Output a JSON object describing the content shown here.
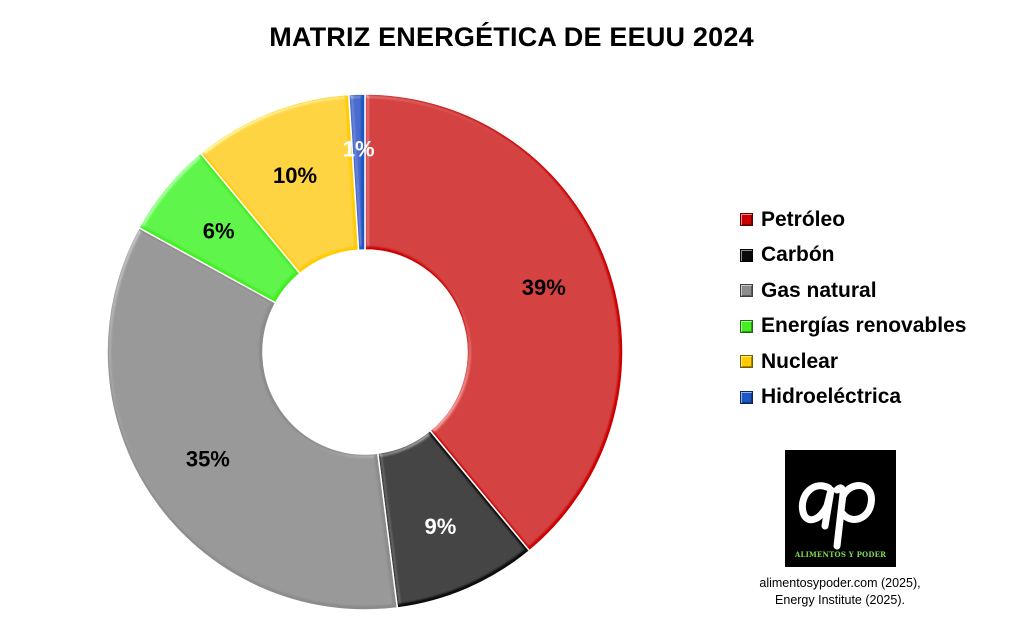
{
  "chart_data": {
    "type": "pie",
    "title": "MATRIZ ENERGÉTICA DE EEUU 2024",
    "donut": true,
    "legend_position": "right",
    "slices": [
      {
        "name": "Petróleo",
        "value": 39,
        "label": "39%",
        "color": "#cc0000",
        "label_color": "#000000"
      },
      {
        "name": "Carbón",
        "value": 9,
        "label": "9%",
        "color": "#0a0a0a",
        "label_color": "#ffffff"
      },
      {
        "name": "Gas natural",
        "value": 35,
        "label": "35%",
        "color": "#8c8c8c",
        "label_color": "#000000"
      },
      {
        "name": "Energías renovables",
        "value": 6,
        "label": "6%",
        "color": "#44ee22",
        "label_color": "#000000"
      },
      {
        "name": "Nuclear",
        "value": 10,
        "label": "10%",
        "color": "#ffcc00",
        "label_color": "#000000"
      },
      {
        "name": "Hidroeléctrica",
        "value": 1,
        "label": "1%",
        "color": "#1a56c4",
        "label_color": "#ffffff"
      }
    ]
  },
  "logo": {
    "mark": "ap",
    "caption": "ALIMENTOS Y PODER",
    "background": "#000000",
    "caption_color": "#7ed957"
  },
  "source": {
    "line1": "alimentosypoder.com (2025),",
    "line2": "Energy Institute (2025)."
  }
}
